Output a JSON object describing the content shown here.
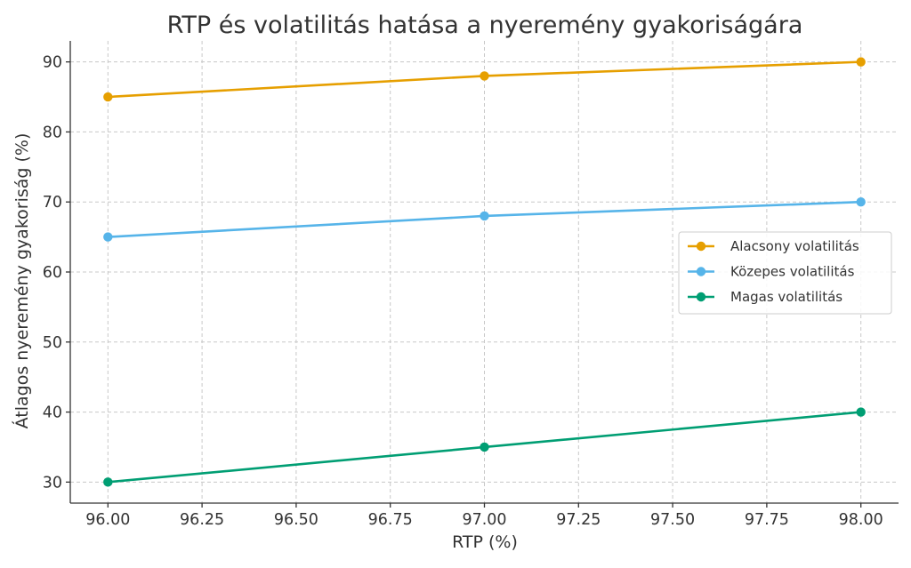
{
  "chart_data": {
    "type": "line",
    "title": "RTP és volatilitás hatása a nyeremény gyakoriságára",
    "xlabel": "RTP (%)",
    "ylabel": "Átlagos nyeremény gyakoriság (%)",
    "x": [
      96,
      97,
      98
    ],
    "xlim": [
      95.9,
      98.1
    ],
    "ylim": [
      27,
      93
    ],
    "x_ticks": [
      96.0,
      96.25,
      96.5,
      96.75,
      97.0,
      97.25,
      97.5,
      97.75,
      98.0
    ],
    "x_tick_labels": [
      "96.00",
      "96.25",
      "96.50",
      "96.75",
      "97.00",
      "97.25",
      "97.50",
      "97.75",
      "98.00"
    ],
    "y_ticks": [
      30,
      40,
      50,
      60,
      70,
      80,
      90
    ],
    "y_tick_labels": [
      "30",
      "40",
      "50",
      "60",
      "70",
      "80",
      "90"
    ],
    "grid": true,
    "legend_position": "right",
    "series": [
      {
        "name": "Alacsony volatilitás",
        "values": [
          85,
          88,
          90
        ],
        "color": "#E69F00"
      },
      {
        "name": "Közepes volatilitás",
        "values": [
          65,
          68,
          70
        ],
        "color": "#56B4E9"
      },
      {
        "name": "Magas volatilitás",
        "values": [
          30,
          35,
          40
        ],
        "color": "#009E73"
      }
    ]
  }
}
